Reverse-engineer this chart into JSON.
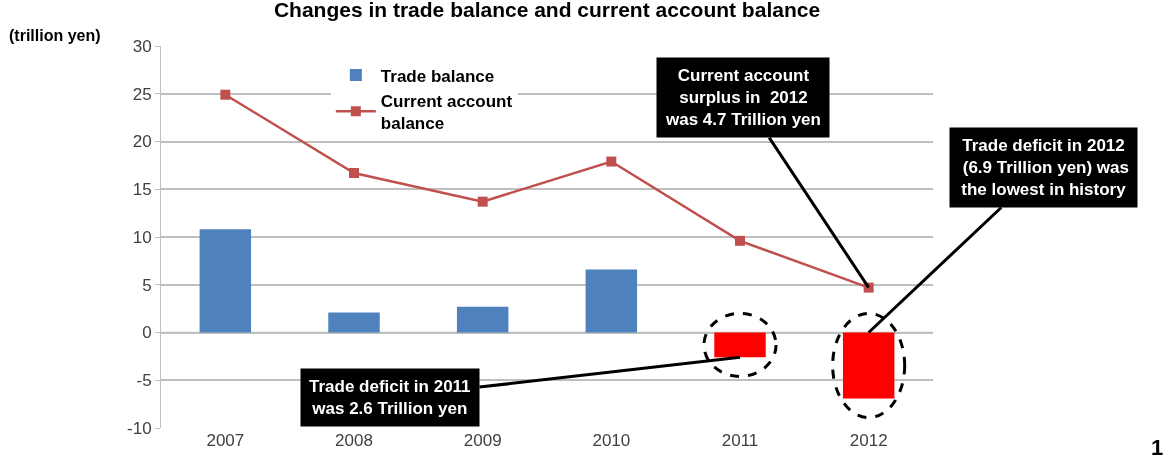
{
  "chart_data": {
    "type": "bar",
    "title": "Changes in trade balance and current account balance",
    "ylabel": "(trillion yen)",
    "categories": [
      "2007",
      "2008",
      "2009",
      "2010",
      "2011",
      "2012"
    ],
    "series": [
      {
        "name": "Trade balance",
        "color": "#4f81bd",
        "colors": [
          "#4f81bd",
          "#4f81bd",
          "#4f81bd",
          "#4f81bd",
          "#ff0000",
          "#ff0000"
        ],
        "values": [
          10.8,
          2.1,
          2.7,
          6.6,
          -2.6,
          -6.9
        ]
      },
      {
        "name": "Current account balance",
        "type": "line",
        "color": "#c0504d",
        "marker": "square",
        "values": [
          24.9,
          16.7,
          13.7,
          17.9,
          9.6,
          4.7
        ]
      }
    ],
    "ylim": [
      -10,
      30
    ],
    "yticks": [
      -10,
      -5,
      0,
      5,
      10,
      15,
      20,
      25,
      30
    ],
    "grid": "y",
    "legend": "top",
    "annotations": [
      {
        "text": "Current account\nsurplus in  2012\nwas 4.7 Trillion yen",
        "x": "2012",
        "y": 4.7
      },
      {
        "text": "Trade deficit in 2012\n (6.9 Trillion yen) was\nthe lowest in history",
        "x": "2012",
        "y": 0
      },
      {
        "text": "Trade deficit in 2011\nwas 2.6 Trillion yen",
        "x": "2011",
        "y": -2.6
      },
      "1"
    ]
  }
}
